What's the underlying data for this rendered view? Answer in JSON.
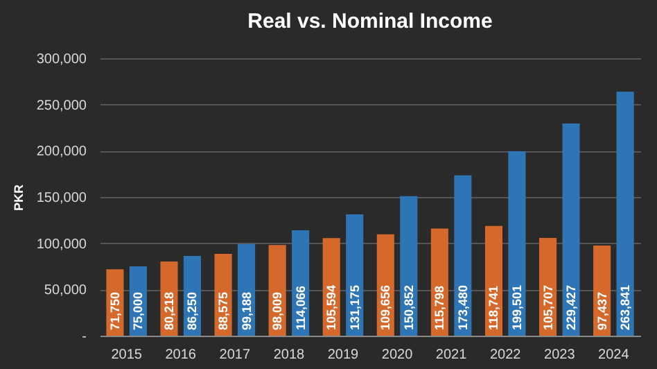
{
  "chart_data": {
    "type": "bar",
    "title": "Real vs. Nominal  Income",
    "ylabel": "PKR",
    "categories": [
      "2015",
      "2016",
      "2017",
      "2018",
      "2019",
      "2020",
      "2021",
      "2022",
      "2023",
      "2024"
    ],
    "series": [
      {
        "color": "#d5692b",
        "values": [
          71750,
          80218,
          88575,
          98009,
          105594,
          109656,
          115798,
          118741,
          105707,
          97437
        ],
        "value_labels": [
          "71,750",
          "80,218",
          "88,575",
          "98,009",
          "105,594",
          "109,656",
          "115,798",
          "118,741",
          "105,707",
          "97,437"
        ]
      },
      {
        "color": "#2e75b6",
        "values": [
          75000,
          86250,
          99188,
          114066,
          131175,
          150852,
          173480,
          199501,
          229427,
          263841
        ],
        "value_labels": [
          "75,000",
          "86,250",
          "99,188",
          "114,066",
          "131,175",
          "150,852",
          "173,480",
          "199,501",
          "229,427",
          "263,841"
        ]
      }
    ],
    "ylim": [
      0,
      300000
    ],
    "yticks": [
      {
        "value": 0,
        "label": "-"
      },
      {
        "value": 50000,
        "label": "50,000"
      },
      {
        "value": 100000,
        "label": "100,000"
      },
      {
        "value": 150000,
        "label": "150,000"
      },
      {
        "value": 200000,
        "label": "200,000"
      },
      {
        "value": 250000,
        "label": "250,000"
      },
      {
        "value": 300000,
        "label": "300,000"
      }
    ],
    "grid": "y",
    "legend": false
  }
}
